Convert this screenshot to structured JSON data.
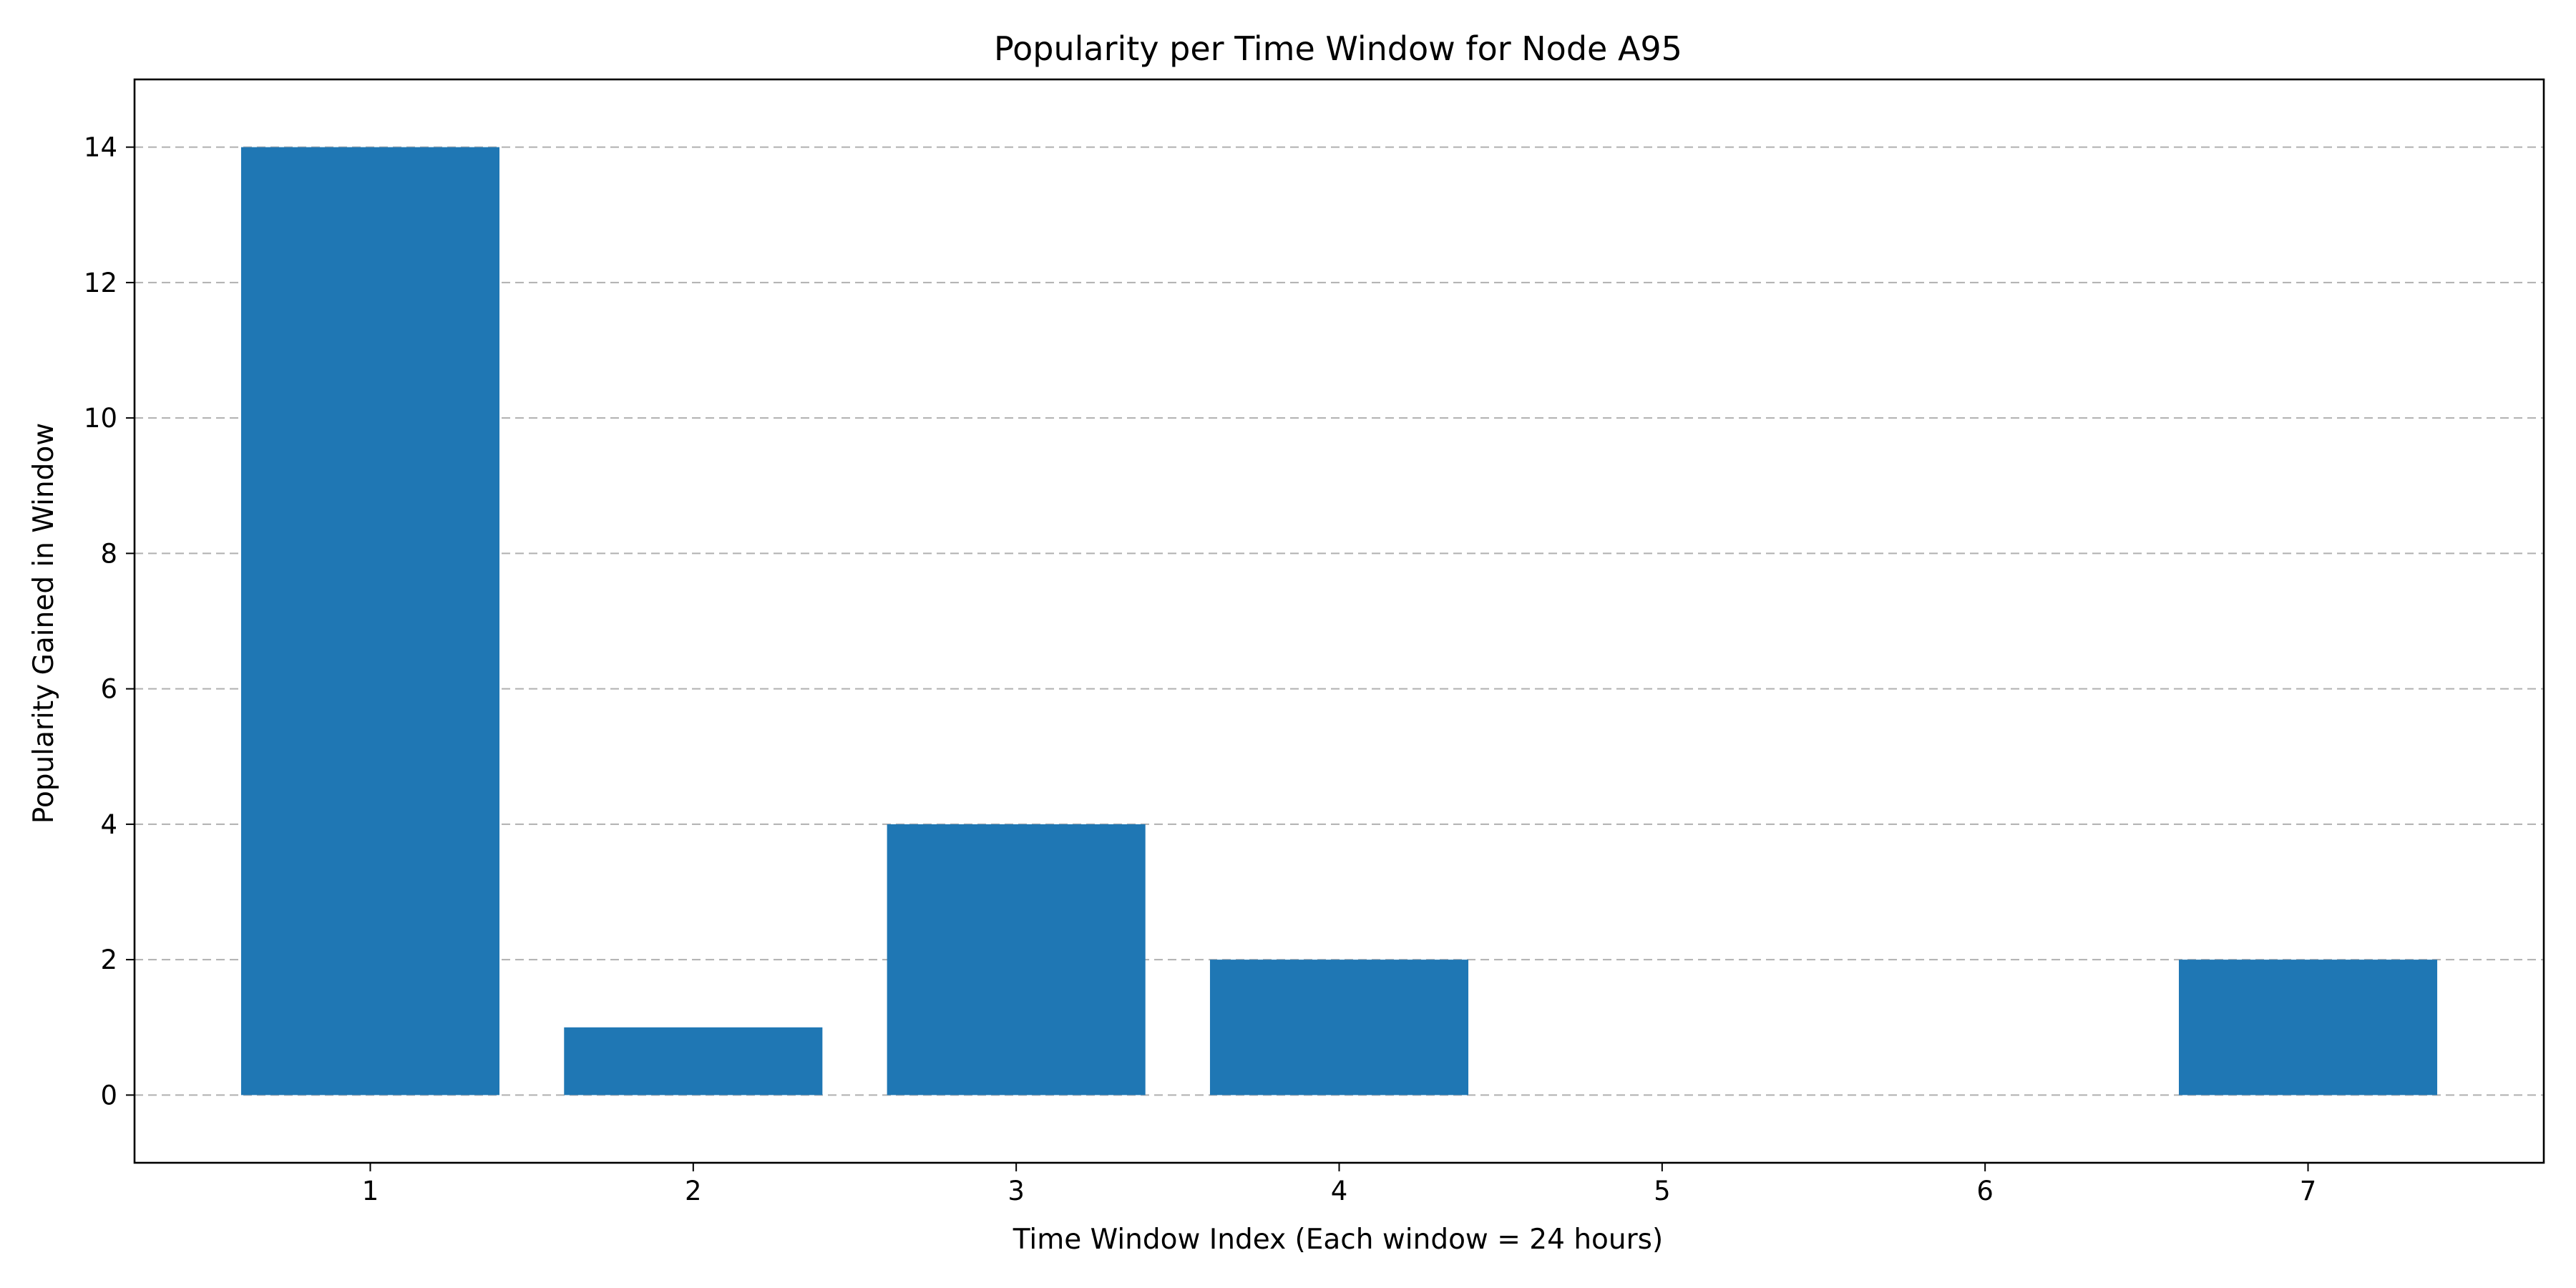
{
  "chart_data": {
    "type": "bar",
    "title": "Popularity per Time Window for Node A95",
    "xlabel": "Time Window Index (Each window = 24 hours)",
    "ylabel": "Popularity Gained in Window",
    "categories": [
      "1",
      "2",
      "3",
      "4",
      "5",
      "6",
      "7"
    ],
    "x": [
      1,
      2,
      3,
      4,
      5,
      6,
      7
    ],
    "values": [
      14,
      1,
      4,
      2,
      0,
      0,
      2
    ],
    "xlim": [
      0.27,
      7.73
    ],
    "ylim": [
      -1,
      15
    ],
    "yticks": [
      0,
      2,
      4,
      6,
      8,
      10,
      12,
      14
    ],
    "bar_color": "#1f77b4",
    "grid": {
      "y": true,
      "x": false,
      "style": "dashed",
      "color": "#b0b0b0"
    },
    "legend": "none"
  }
}
